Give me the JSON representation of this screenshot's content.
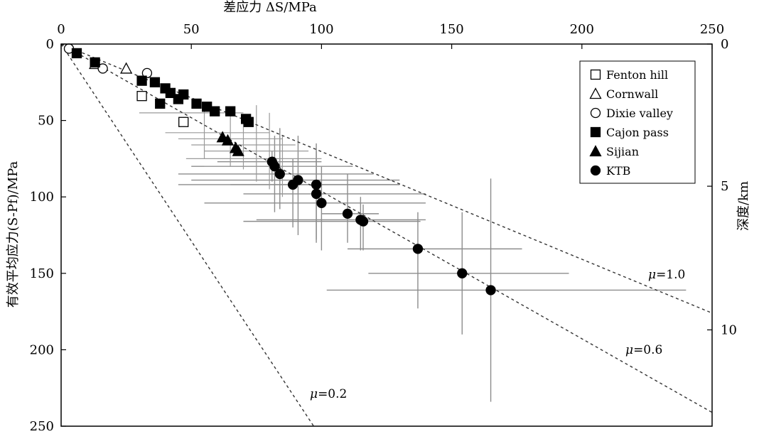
{
  "chart_data": {
    "type": "scatter",
    "title": "",
    "x_top_label": "差应力 ΔS/MPa",
    "y_left_label": "有效平均应力(S-Pf)/MPa",
    "y_right_label": "深度/km",
    "x_range": [
      0,
      250
    ],
    "y_range": [
      0,
      250
    ],
    "x_ticks": [
      "0",
      "50",
      "100",
      "150",
      "200",
      "250"
    ],
    "y_ticks": [
      "0",
      "50",
      "100",
      "150",
      "200",
      "250"
    ],
    "depth_ticks": [
      {
        "depth": "0",
        "stress": 0
      },
      {
        "depth": "5",
        "stress": 93
      },
      {
        "depth": "10",
        "stress": 187
      }
    ],
    "friction_lines": [
      {
        "label": "μ=1.0",
        "mu": "1.0",
        "points": [
          [
            0,
            0
          ],
          [
            250,
            176
          ]
        ]
      },
      {
        "label": "μ=0.6",
        "mu": "0.6",
        "points": [
          [
            0,
            0
          ],
          [
            250,
            241
          ]
        ]
      },
      {
        "label": "μ=0.2",
        "mu": "0.2",
        "points": [
          [
            0,
            0
          ],
          [
            97,
            250
          ]
        ]
      }
    ],
    "legend_position": "top-right",
    "series": [
      {
        "name": "Fenton hill",
        "marker": "square-open",
        "points": [
          [
            31,
            34
          ],
          [
            47,
            51
          ]
        ]
      },
      {
        "name": "Cornwall",
        "marker": "triangle-open",
        "points": [
          [
            13,
            13
          ],
          [
            25,
            16
          ]
        ]
      },
      {
        "name": "Dixie valley",
        "marker": "circle-open",
        "points": [
          [
            3,
            3
          ],
          [
            16,
            16
          ],
          [
            33,
            19
          ]
        ]
      },
      {
        "name": "Cajon pass",
        "marker": "square-filled",
        "points": [
          [
            6,
            6
          ],
          [
            13,
            12
          ],
          [
            31,
            24
          ],
          [
            36,
            25
          ],
          [
            40,
            29
          ],
          [
            42,
            32
          ],
          [
            38,
            39
          ],
          [
            45,
            36
          ],
          [
            47,
            33
          ],
          [
            52,
            39
          ],
          [
            56,
            41
          ],
          [
            59,
            44
          ],
          [
            65,
            44
          ],
          [
            71,
            49
          ],
          [
            72,
            51
          ]
        ]
      },
      {
        "name": "Sijian",
        "marker": "triangle-filled",
        "points": [
          [
            62,
            61
          ],
          [
            64,
            63
          ],
          [
            67,
            68
          ],
          [
            68,
            70
          ]
        ]
      },
      {
        "name": "KTB",
        "marker": "circle-filled",
        "points": [
          [
            81,
            77
          ],
          [
            82,
            80
          ],
          [
            84,
            85
          ],
          [
            89,
            92
          ],
          [
            91,
            89
          ],
          [
            98,
            92
          ],
          [
            98,
            98
          ],
          [
            100,
            104
          ],
          [
            110,
            111
          ],
          [
            115,
            115
          ],
          [
            116,
            116
          ],
          [
            137,
            134
          ],
          [
            154,
            150
          ],
          [
            165,
            161
          ]
        ],
        "error_bars": [
          {
            "xerr": [
              60,
              100
            ],
            "yerr": [
              70,
              90
            ]
          },
          {
            "xerr": [
              50,
              112
            ],
            "yerr": [
              60,
              110
            ]
          },
          {
            "xerr": [
              45,
              120
            ],
            "yerr": [
              55,
              108
            ]
          },
          {
            "xerr": [
              45,
              130
            ],
            "yerr": [
              75,
              120
            ]
          },
          {
            "xerr": [
              50,
              130
            ],
            "yerr": [
              60,
              125
            ]
          },
          {
            "xerr": [
              65,
              130
            ],
            "yerr": [
              65,
              130
            ]
          },
          {
            "xerr": [
              70,
              140
            ],
            "yerr": [
              70,
              128
            ]
          },
          {
            "xerr": [
              55,
              140
            ],
            "yerr": [
              80,
              135
            ]
          },
          {
            "xerr": [
              100,
              122
            ],
            "yerr": [
              85,
              130
            ]
          },
          {
            "xerr": [
              75,
              140
            ],
            "yerr": [
              100,
              135
            ]
          },
          {
            "xerr": [
              70,
              138
            ],
            "yerr": [
              105,
              135
            ]
          },
          {
            "xerr": [
              110,
              177
            ],
            "yerr": [
              110,
              173
            ]
          },
          {
            "xerr": [
              118,
              195
            ],
            "yerr": [
              110,
              190
            ]
          },
          {
            "xerr": [
              102,
              240
            ],
            "yerr": [
              88,
              234
            ]
          }
        ]
      }
    ]
  }
}
